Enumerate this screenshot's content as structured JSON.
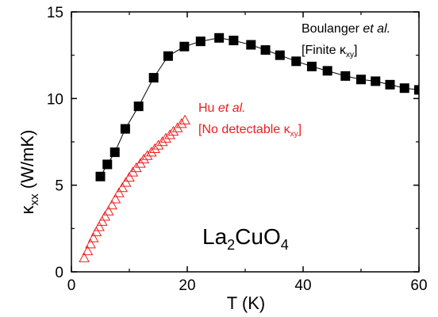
{
  "chart_data": {
    "type": "scatter",
    "xlabel": "T (K)",
    "ylabel": "κxx (W/mK)",
    "ylabel_parts": {
      "symbol": "κ",
      "subscript": "xx",
      "unit": " (W/mK)"
    },
    "xlim": [
      0,
      60
    ],
    "ylim": [
      0,
      15
    ],
    "x_ticks": [
      0,
      20,
      40,
      60
    ],
    "y_ticks": [
      0,
      5,
      10,
      15
    ],
    "grid": false,
    "series": [
      {
        "name": "Boulanger et al. [Finite κxy]",
        "label_parts": {
          "author": "Boulanger ",
          "etal": "et al.",
          "note_pre": "[Finite κ",
          "note_sub": "xy",
          "note_post": "]"
        },
        "color": "#000000",
        "marker": "filled-square",
        "connected": true,
        "x": [
          5.0,
          6.2,
          7.5,
          9.3,
          11.6,
          14.2,
          16.7,
          19.5,
          22.3,
          25.5,
          28.0,
          31.0,
          33.5,
          36.0,
          38.8,
          41.5,
          44.2,
          47.3,
          50.0,
          52.5,
          55.0,
          57.5,
          60.0
        ],
        "y": [
          5.5,
          6.2,
          6.9,
          8.25,
          9.55,
          11.2,
          12.45,
          13.0,
          13.3,
          13.5,
          13.35,
          13.1,
          12.8,
          12.5,
          12.15,
          11.85,
          11.6,
          11.3,
          11.1,
          11.0,
          10.8,
          10.6,
          10.5
        ]
      },
      {
        "name": "Hu et al. [No detectable κxy]",
        "label_parts": {
          "author": "Hu ",
          "etal": "et al.",
          "note_pre": "[No detectable κ",
          "note_sub": "xy",
          "note_post": "]"
        },
        "color": "#ee1c1c",
        "marker": "open-triangle",
        "connected": false,
        "x": [
          2.2,
          2.8,
          3.3,
          3.8,
          4.3,
          4.8,
          5.3,
          5.8,
          6.4,
          7.0,
          7.6,
          8.2,
          8.8,
          9.4,
          10.0,
          10.6,
          11.2,
          11.9,
          12.5,
          13.1,
          13.8,
          14.4,
          15.0,
          15.7,
          16.3,
          17.0,
          17.6,
          18.3,
          19.0,
          19.6
        ],
        "y": [
          0.8,
          1.2,
          1.6,
          1.95,
          2.3,
          2.6,
          2.9,
          3.2,
          3.5,
          3.85,
          4.2,
          4.55,
          4.85,
          5.15,
          5.45,
          5.75,
          6.0,
          6.25,
          6.5,
          6.7,
          6.9,
          7.1,
          7.3,
          7.5,
          7.7,
          7.9,
          8.1,
          8.3,
          8.55,
          8.75
        ]
      }
    ],
    "annotation": {
      "text": "La2CuO4",
      "parts": [
        [
          "La",
          ""
        ],
        [
          "2",
          "sub"
        ],
        [
          "CuO",
          ""
        ],
        [
          "4",
          "sub"
        ]
      ]
    }
  }
}
